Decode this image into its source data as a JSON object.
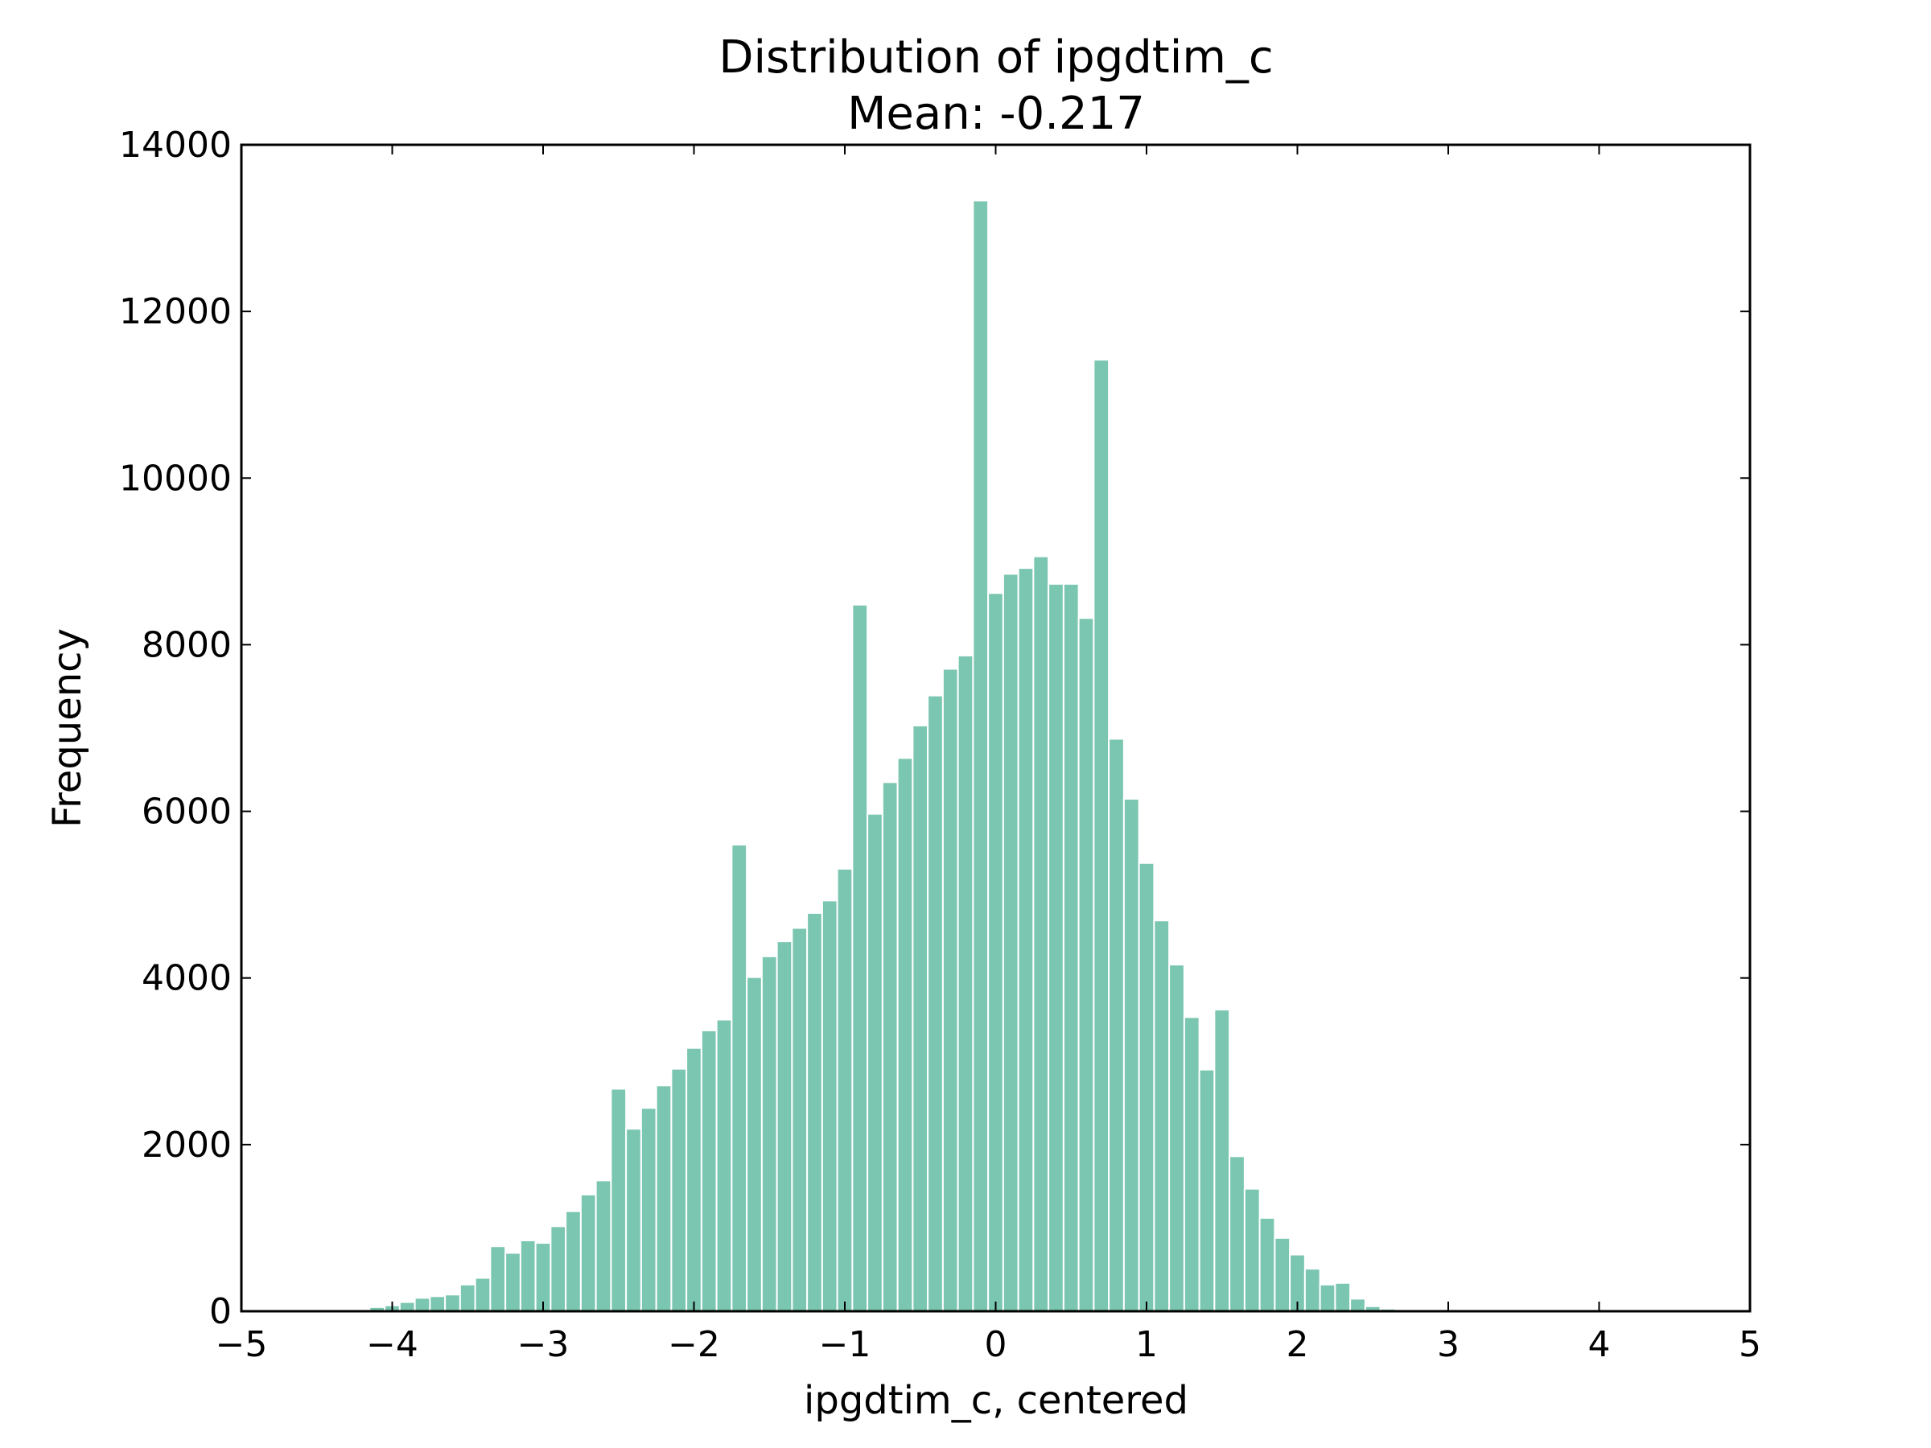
{
  "chart_data": {
    "type": "bar",
    "title": "Distribution of ipgdtim_c",
    "subtitle": "Mean: -0.217",
    "xlabel": "ipgdtim_c, centered",
    "ylabel": "Frequency",
    "xlim": [
      -5,
      5
    ],
    "ylim": [
      0,
      14000
    ],
    "x_ticks": [
      -5,
      -4,
      -3,
      -2,
      -1,
      0,
      1,
      2,
      3,
      4,
      5
    ],
    "x_tick_labels": [
      "−5",
      "−4",
      "−3",
      "−2",
      "−1",
      "0",
      "1",
      "2",
      "3",
      "4",
      "5"
    ],
    "y_ticks": [
      0,
      2000,
      4000,
      6000,
      8000,
      10000,
      12000,
      14000
    ],
    "y_tick_labels": [
      "0",
      "2000",
      "4000",
      "6000",
      "8000",
      "10000",
      "12000",
      "14000"
    ],
    "bar_color": "#7bc6b0",
    "bin_width": 0.1,
    "bin_starts": [
      -4.25,
      -4.15,
      -4.05,
      -3.95,
      -3.85,
      -3.75,
      -3.65,
      -3.55,
      -3.45,
      -3.35,
      -3.25,
      -3.15,
      -3.05,
      -2.95,
      -2.85,
      -2.75,
      -2.65,
      -2.55,
      -2.45,
      -2.35,
      -2.25,
      -2.15,
      -2.05,
      -1.95,
      -1.85,
      -1.75,
      -1.65,
      -1.55,
      -1.45,
      -1.35,
      -1.25,
      -1.15,
      -1.05,
      -0.95,
      -0.85,
      -0.75,
      -0.65,
      -0.55,
      -0.45,
      -0.35,
      -0.25,
      -0.15,
      -0.05,
      0.05,
      0.15,
      0.25,
      0.35,
      0.45,
      0.55,
      0.65,
      0.75,
      0.85,
      0.95,
      1.05,
      1.15,
      1.25,
      1.35,
      1.45,
      1.55,
      1.65,
      1.75,
      1.85,
      1.95,
      2.05,
      2.15,
      2.25,
      2.35,
      2.45,
      2.55,
      2.65,
      2.75,
      2.85
    ],
    "values": [
      20,
      50,
      70,
      110,
      160,
      180,
      200,
      320,
      400,
      780,
      700,
      850,
      820,
      1020,
      1200,
      1400,
      1570,
      2670,
      2190,
      2440,
      2710,
      2910,
      3160,
      3370,
      3500,
      5600,
      4010,
      4260,
      4440,
      4600,
      4780,
      4930,
      5310,
      8480,
      5970,
      6350,
      6640,
      7030,
      7390,
      7710,
      7870,
      13330,
      8620,
      8850,
      8920,
      9060,
      8730,
      8730,
      8320,
      11420,
      6870,
      6150,
      5380,
      4690,
      4160,
      3530,
      2900,
      3620,
      1860,
      1470,
      1120,
      880,
      680,
      510,
      320,
      340,
      150,
      60,
      30,
      20,
      10,
      5
    ]
  }
}
